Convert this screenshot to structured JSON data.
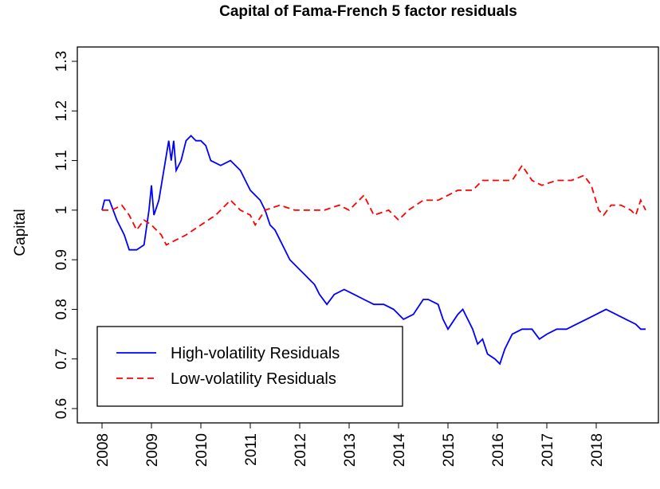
{
  "chart_data": {
    "type": "line",
    "title": "Capital of Fama-French 5 factor residuals",
    "y_label": "Capital",
    "xlim": [
      2008,
      2019
    ],
    "xticks": [
      2008,
      2009,
      2010,
      2011,
      2012,
      2013,
      2014,
      2015,
      2016,
      2017,
      2018
    ],
    "ylim": [
      0.6,
      1.3
    ],
    "yticks": [
      0.6,
      0.7,
      0.8,
      0.9,
      1.0,
      1.1,
      1.2,
      1.3
    ],
    "legend": "bottom-left",
    "series": [
      {
        "name": "High-volatility Residuals",
        "color": "#0000ff",
        "dash": "solid",
        "x": [
          2008.0,
          2008.05,
          2008.15,
          2008.3,
          2008.45,
          2008.55,
          2008.7,
          2008.85,
          2008.95,
          2009.0,
          2009.05,
          2009.15,
          2009.25,
          2009.35,
          2009.4,
          2009.45,
          2009.5,
          2009.6,
          2009.7,
          2009.8,
          2009.9,
          2010.0,
          2010.1,
          2010.2,
          2010.4,
          2010.6,
          2010.8,
          2010.9,
          2011.0,
          2011.2,
          2011.3,
          2011.4,
          2011.5,
          2011.6,
          2011.8,
          2012.0,
          2012.1,
          2012.2,
          2012.3,
          2012.4,
          2012.55,
          2012.7,
          2012.9,
          2013.1,
          2013.3,
          2013.5,
          2013.7,
          2013.9,
          2014.1,
          2014.3,
          2014.5,
          2014.6,
          2014.8,
          2014.9,
          2015.0,
          2015.2,
          2015.3,
          2015.5,
          2015.6,
          2015.7,
          2015.8,
          2015.95,
          2016.05,
          2016.15,
          2016.3,
          2016.5,
          2016.7,
          2016.85,
          2017.0,
          2017.2,
          2017.4,
          2017.6,
          2017.8,
          2018.0,
          2018.2,
          2018.4,
          2018.6,
          2018.8,
          2018.9,
          2019.0
        ],
        "values": [
          1.0,
          1.02,
          1.02,
          0.98,
          0.95,
          0.92,
          0.92,
          0.93,
          1.0,
          1.05,
          0.99,
          1.02,
          1.08,
          1.14,
          1.1,
          1.14,
          1.08,
          1.1,
          1.14,
          1.15,
          1.14,
          1.14,
          1.13,
          1.1,
          1.09,
          1.1,
          1.08,
          1.06,
          1.04,
          1.02,
          1.0,
          0.97,
          0.96,
          0.94,
          0.9,
          0.88,
          0.87,
          0.86,
          0.85,
          0.83,
          0.81,
          0.83,
          0.84,
          0.83,
          0.82,
          0.81,
          0.81,
          0.8,
          0.78,
          0.79,
          0.82,
          0.82,
          0.81,
          0.78,
          0.76,
          0.79,
          0.8,
          0.76,
          0.73,
          0.74,
          0.71,
          0.7,
          0.69,
          0.72,
          0.75,
          0.76,
          0.76,
          0.74,
          0.75,
          0.76,
          0.76,
          0.77,
          0.78,
          0.79,
          0.8,
          0.79,
          0.78,
          0.77,
          0.76,
          0.76
        ]
      },
      {
        "name": "Low-volatility Residuals",
        "color": "#ff0000",
        "dash": "dashed",
        "x": [
          2008.0,
          2008.2,
          2008.4,
          2008.55,
          2008.7,
          2008.85,
          2009.0,
          2009.2,
          2009.3,
          2009.5,
          2009.7,
          2010.0,
          2010.3,
          2010.5,
          2010.6,
          2010.8,
          2011.0,
          2011.1,
          2011.3,
          2011.6,
          2011.9,
          2012.2,
          2012.5,
          2012.8,
          2013.0,
          2013.3,
          2013.5,
          2013.8,
          2014.0,
          2014.2,
          2014.5,
          2014.8,
          2015.0,
          2015.2,
          2015.5,
          2015.7,
          2016.0,
          2016.3,
          2016.5,
          2016.7,
          2016.9,
          2017.2,
          2017.5,
          2017.75,
          2017.9,
          2018.05,
          2018.15,
          2018.3,
          2018.5,
          2018.7,
          2018.8,
          2018.9,
          2019.0
        ],
        "values": [
          1.0,
          1.0,
          1.01,
          0.99,
          0.96,
          0.98,
          0.97,
          0.95,
          0.93,
          0.94,
          0.95,
          0.97,
          0.99,
          1.01,
          1.02,
          1.0,
          0.99,
          0.97,
          1.0,
          1.01,
          1.0,
          1.0,
          1.0,
          1.01,
          1.0,
          1.03,
          0.99,
          1.0,
          0.98,
          1.0,
          1.02,
          1.02,
          1.03,
          1.04,
          1.04,
          1.06,
          1.06,
          1.06,
          1.09,
          1.06,
          1.05,
          1.06,
          1.06,
          1.07,
          1.05,
          1.0,
          0.99,
          1.01,
          1.01,
          1.0,
          0.99,
          1.02,
          1.0
        ]
      }
    ]
  }
}
